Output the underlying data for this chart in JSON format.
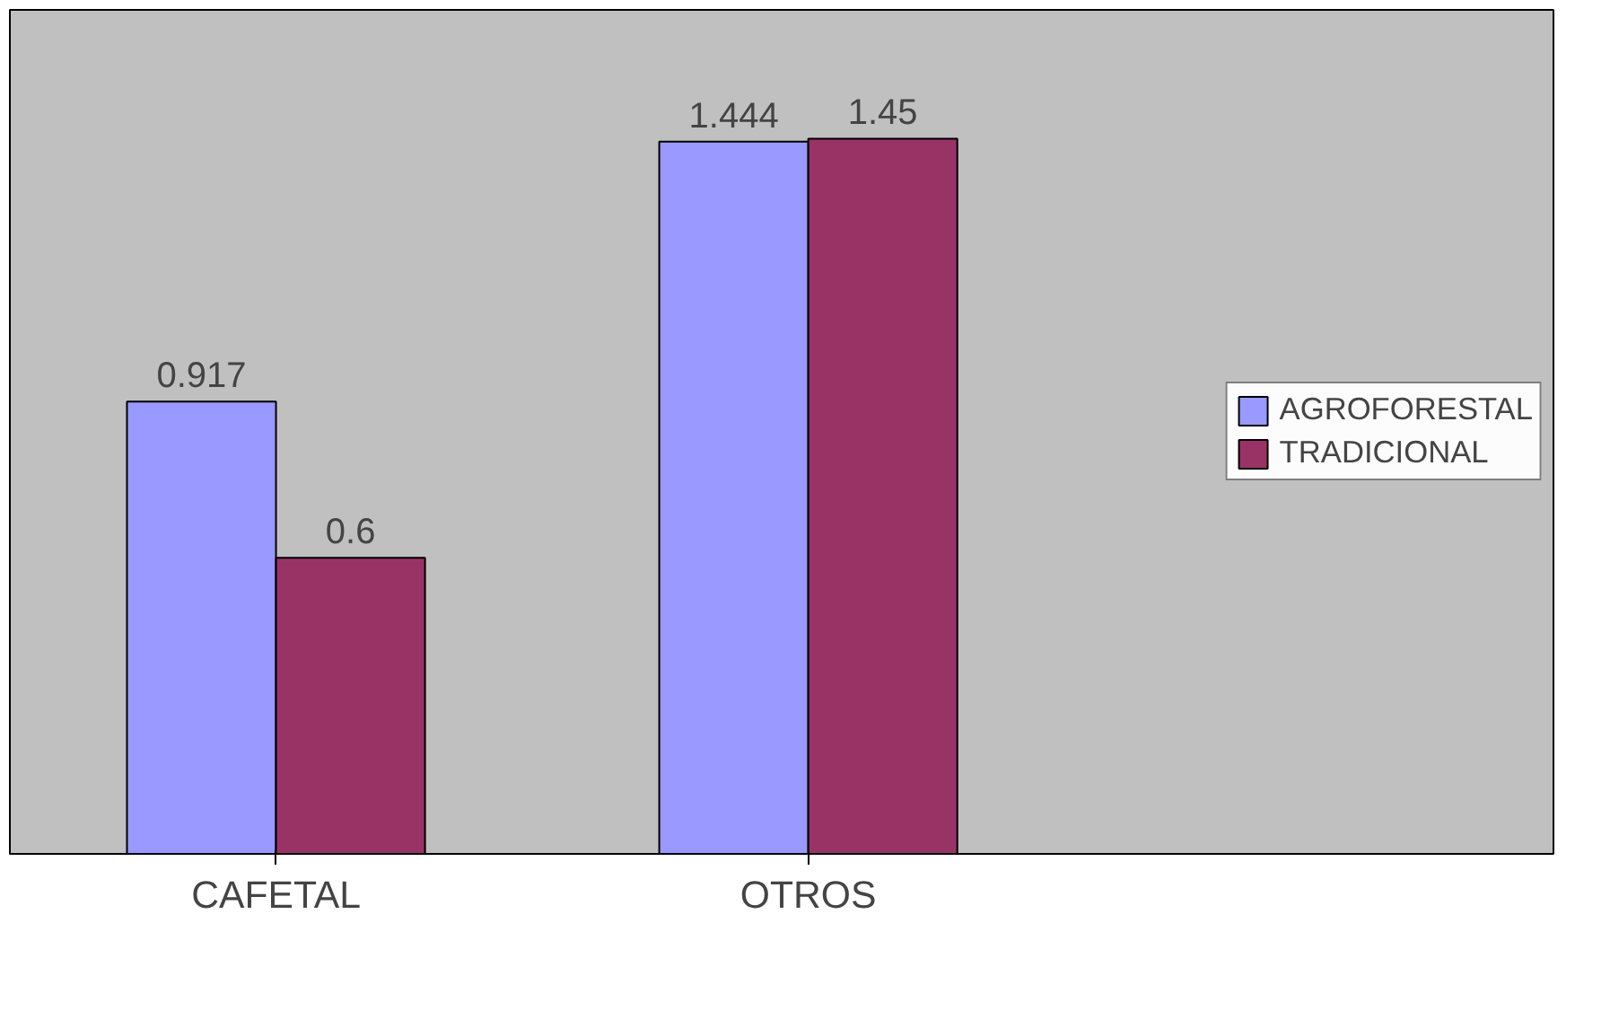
{
  "chart_data": {
    "type": "bar",
    "categories": [
      "CAFETAL",
      "OTROS"
    ],
    "series": [
      {
        "name": "AGROFORESTAL",
        "color": "#9999ff",
        "values": [
          0.917,
          1.444
        ]
      },
      {
        "name": "TRADICIONAL",
        "color": "#993366",
        "values": [
          0.6,
          1.45
        ]
      }
    ],
    "data_labels": true,
    "legend": "right",
    "grid": false
  }
}
